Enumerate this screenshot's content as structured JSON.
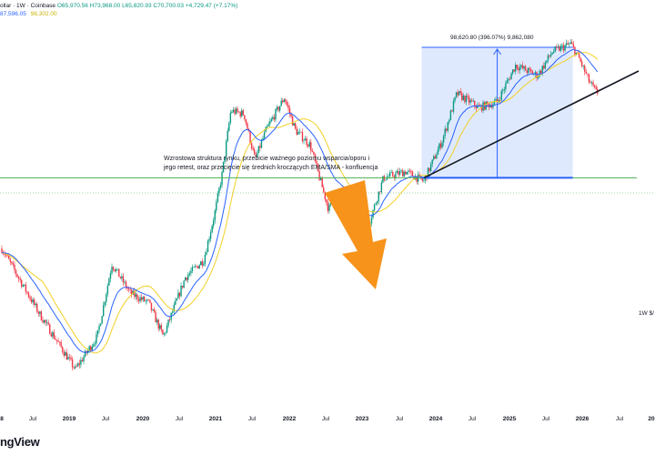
{
  "header": {
    "symbol": "ollar · 1W · Coinbase",
    "ohlc": "O65,970.56  H73,968.00  L65,820.93  C70,700.03  +4,729.47 (+7.17%)",
    "ema_value": "87,596.05",
    "sma_value": "96,302.00"
  },
  "annotation": {
    "lines": [
      "Wzrostowa struktura rynku, przebicie ważnego poziomu wsparcia/oporu i",
      "jego retest, oraz przecięcie się średnich kroczących EMA/SMA - konfluencja"
    ]
  },
  "measure_label": "98,620.80 (396.07%) 9,862,080",
  "right_axis_label": "1W $/",
  "watermark": "ngView",
  "x_axis": {
    "labels": [
      "8",
      "Jul",
      "2019",
      "Jul",
      "2020",
      "Jul",
      "2021",
      "Jul",
      "2022",
      "Jul",
      "2023",
      "Jul",
      "2024",
      "Jul",
      "2025",
      "Jul",
      "2026",
      "Jul",
      "20"
    ],
    "year_flags": [
      true,
      false,
      true,
      false,
      true,
      false,
      true,
      false,
      true,
      false,
      true,
      false,
      true,
      false,
      true,
      false,
      true,
      false,
      true
    ]
  },
  "colors": {
    "up": "#089981",
    "down": "#f23645",
    "ema": "#2962ff",
    "sma": "#f2d024",
    "support": "#4caf50",
    "measure_fill": "#d7e3fc",
    "measure_stroke": "#2962ff",
    "arrow": "#f7931a",
    "trendline": "#131722"
  },
  "chart_data": {
    "type": "line",
    "title": "",
    "x_ticks": [
      "8",
      "Jul",
      "2019",
      "Jul",
      "2020",
      "Jul",
      "2021",
      "Jul",
      "2022",
      "Jul",
      "2023",
      "Jul",
      "2024",
      "Jul",
      "2025",
      "Jul",
      "2026",
      "Jul",
      "20"
    ],
    "series": [
      {
        "name": "",
        "x": [
          2018.0,
          2018.5,
          2019.0,
          2019.3,
          2019.5,
          2019.75,
          2020.0,
          2020.2,
          2020.5,
          2020.75,
          2020.9,
          2021.0,
          2021.12,
          2021.3,
          2021.45,
          2021.6,
          2021.85,
          2022.0,
          2022.2,
          2022.45,
          2022.6,
          2022.9,
          2023.0,
          2023.2,
          2023.5,
          2023.75,
          2024.0,
          2024.2,
          2024.5,
          2024.75,
          2025.0,
          2025.3,
          2025.5,
          2025.75,
          2025.85,
          2026.0,
          2026.1
        ],
        "y": [
          13000,
          6500,
          3500,
          5000,
          11000,
          8000,
          7200,
          5000,
          9500,
          11500,
          19000,
          29000,
          58000,
          56000,
          34000,
          47000,
          67000,
          47000,
          40000,
          20000,
          23000,
          16500,
          17000,
          28000,
          30000,
          27000,
          42000,
          70000,
          60000,
          64000,
          95000,
          85000,
          110000,
          120000,
          105000,
          80000,
          70700
        ]
      }
    ],
    "support_level": 28000,
    "trendline": "from 2023.75 to 2026.4, rising",
    "grid": false,
    "legend": "top-left"
  }
}
